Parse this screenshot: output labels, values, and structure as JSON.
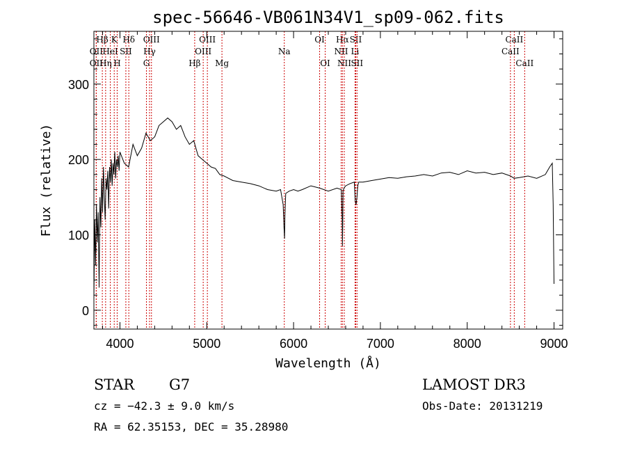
{
  "chart_data": {
    "type": "line",
    "title": "spec-56646-VB061N34V1_sp09-062.fits",
    "xlabel": "Wavelength (Å)",
    "ylabel": "Flux (relative)",
    "xlim": [
      3700,
      9100
    ],
    "ylim": [
      -25,
      370
    ],
    "xticks": [
      4000,
      5000,
      6000,
      7000,
      8000,
      9000
    ],
    "yticks": [
      0,
      100,
      200,
      300
    ],
    "grid": false,
    "series": [
      {
        "x": [
          3700,
          3710,
          3720,
          3730,
          3740,
          3750,
          3760,
          3770,
          3780,
          3790,
          3800,
          3810,
          3820,
          3830,
          3840,
          3850,
          3860,
          3870,
          3880,
          3890,
          3900,
          3910,
          3920,
          3930,
          3940,
          3950,
          3960,
          3970,
          3980,
          3990,
          4000,
          4050,
          4100,
          4150,
          4200,
          4250,
          4300,
          4350,
          4400,
          4450,
          4500,
          4550,
          4600,
          4650,
          4700,
          4750,
          4800,
          4850,
          4900,
          4950,
          5000,
          5050,
          5100,
          5150,
          5200,
          5300,
          5400,
          5500,
          5600,
          5700,
          5800,
          5850,
          5880,
          5890,
          5896,
          5900,
          5910,
          5950,
          6000,
          6050,
          6100,
          6200,
          6300,
          6400,
          6500,
          6550,
          6560,
          6563,
          6566,
          6570,
          6580,
          6600,
          6650,
          6700,
          6710,
          6720,
          6730,
          6740,
          6750,
          6800,
          6900,
          7000,
          7100,
          7200,
          7300,
          7400,
          7500,
          7600,
          7700,
          7800,
          7900,
          8000,
          8100,
          8200,
          8300,
          8400,
          8500,
          8540,
          8600,
          8700,
          8800,
          8900,
          8950,
          8980,
          8990,
          9000
        ],
        "y": [
          15,
          120,
          60,
          140,
          90,
          130,
          30,
          150,
          110,
          175,
          130,
          190,
          150,
          120,
          175,
          160,
          185,
          135,
          190,
          170,
          200,
          165,
          195,
          180,
          210,
          175,
          200,
          190,
          205,
          185,
          210,
          195,
          190,
          220,
          205,
          215,
          235,
          225,
          230,
          245,
          250,
          255,
          250,
          240,
          245,
          230,
          220,
          225,
          205,
          200,
          195,
          190,
          188,
          180,
          178,
          172,
          170,
          168,
          165,
          160,
          158,
          160,
          140,
          110,
          95,
          125,
          155,
          158,
          160,
          158,
          160,
          165,
          162,
          158,
          162,
          160,
          120,
          85,
          110,
          158,
          162,
          165,
          168,
          170,
          145,
          140,
          150,
          165,
          170,
          170,
          172,
          174,
          176,
          175,
          177,
          178,
          180,
          178,
          182,
          183,
          180,
          185,
          182,
          183,
          180,
          182,
          178,
          175,
          176,
          178,
          175,
          180,
          190,
          195,
          140,
          35
        ]
      }
    ],
    "line_markers": [
      {
        "label": "Hβ",
        "x": 3797,
        "row": 0
      },
      {
        "label": "OII",
        "x": 3727,
        "row": 1
      },
      {
        "label": "OII",
        "x": 3727,
        "row": 2
      },
      {
        "label": "K",
        "x": 3934,
        "row": 0
      },
      {
        "label": "Hδ",
        "x": 4102,
        "row": 0
      },
      {
        "label": "HeI",
        "x": 3889,
        "row": 1
      },
      {
        "label": "SII",
        "x": 4068,
        "row": 1
      },
      {
        "label": "Hη",
        "x": 3835,
        "row": 2
      },
      {
        "label": "H",
        "x": 3968,
        "row": 2
      },
      {
        "label": "OIII",
        "x": 4363,
        "row": 0
      },
      {
        "label": "Hγ",
        "x": 4341,
        "row": 1
      },
      {
        "label": "G",
        "x": 4305,
        "row": 2
      },
      {
        "label": "OIII",
        "x": 5007,
        "row": 0
      },
      {
        "label": "OIII",
        "x": 4959,
        "row": 1
      },
      {
        "label": "Hβ",
        "x": 4861,
        "row": 2
      },
      {
        "label": "Mg",
        "x": 5175,
        "row": 2
      },
      {
        "label": "Na",
        "x": 5893,
        "row": 1
      },
      {
        "label": "OI",
        "x": 6300,
        "row": 0
      },
      {
        "label": "OI",
        "x": 6364,
        "row": 2
      },
      {
        "label": "Hα",
        "x": 6563,
        "row": 0
      },
      {
        "label": "SII",
        "x": 6716,
        "row": 0
      },
      {
        "label": "NII",
        "x": 6548,
        "row": 1
      },
      {
        "label": "Li",
        "x": 6708,
        "row": 1
      },
      {
        "label": "NII",
        "x": 6584,
        "row": 2
      },
      {
        "label": "SII",
        "x": 6731,
        "row": 2
      },
      {
        "label": "CaII",
        "x": 8542,
        "row": 0
      },
      {
        "label": "CaII",
        "x": 8498,
        "row": 1
      },
      {
        "label": "CaII",
        "x": 8662,
        "row": 2
      }
    ]
  },
  "info": {
    "class": "STAR",
    "subclass": "G7",
    "survey": "LAMOST DR3",
    "cz": "cz = −42.3 ± 9.0 km/s",
    "obs_date": "Obs-Date: 20131219",
    "coords": "RA =  62.35153, DEC =  35.28980"
  },
  "colors": {
    "spectrum": "#000000",
    "marker": "#cc0000"
  }
}
